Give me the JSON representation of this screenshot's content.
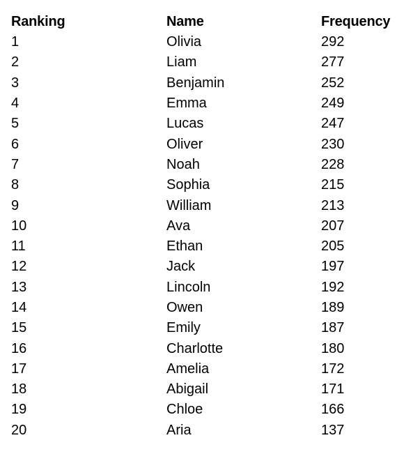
{
  "table": {
    "headers": {
      "ranking": "Ranking",
      "name": "Name",
      "frequency": "Frequency"
    },
    "rows": [
      {
        "ranking": "1",
        "name": "Olivia",
        "frequency": "292"
      },
      {
        "ranking": "2",
        "name": "Liam",
        "frequency": "277"
      },
      {
        "ranking": "3",
        "name": "Benjamin",
        "frequency": "252"
      },
      {
        "ranking": "4",
        "name": "Emma",
        "frequency": "249"
      },
      {
        "ranking": "5",
        "name": "Lucas",
        "frequency": "247"
      },
      {
        "ranking": "6",
        "name": "Oliver",
        "frequency": "230"
      },
      {
        "ranking": "7",
        "name": "Noah",
        "frequency": "228"
      },
      {
        "ranking": "8",
        "name": "Sophia",
        "frequency": "215"
      },
      {
        "ranking": "9",
        "name": "William",
        "frequency": "213"
      },
      {
        "ranking": "10",
        "name": "Ava",
        "frequency": "207"
      },
      {
        "ranking": "11",
        "name": "Ethan",
        "frequency": "205"
      },
      {
        "ranking": "12",
        "name": "Jack",
        "frequency": "197"
      },
      {
        "ranking": "13",
        "name": "Lincoln",
        "frequency": "192"
      },
      {
        "ranking": "14",
        "name": "Owen",
        "frequency": "189"
      },
      {
        "ranking": "15",
        "name": "Emily",
        "frequency": "187"
      },
      {
        "ranking": "16",
        "name": "Charlotte",
        "frequency": "180"
      },
      {
        "ranking": "17",
        "name": "Amelia",
        "frequency": "172"
      },
      {
        "ranking": "18",
        "name": "Abigail",
        "frequency": "171"
      },
      {
        "ranking": "19",
        "name": "Chloe",
        "frequency": "166"
      },
      {
        "ranking": "20",
        "name": "Aria",
        "frequency": "137"
      }
    ]
  }
}
